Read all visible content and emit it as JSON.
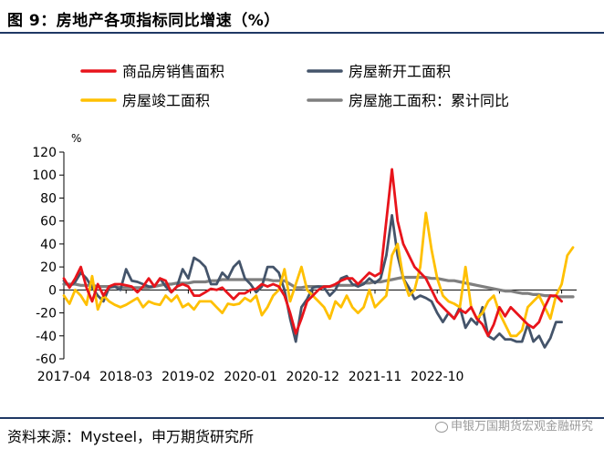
{
  "figure_title": "图 9：房地产各项指标同比增速（%）",
  "source_note": "资料来源：Mysteel，申万期货研究所",
  "watermark_text": "申银万国期货宏观金融研究",
  "colors": {
    "sales_area": "#e8141b",
    "new_starts": "#44546a",
    "completed": "#ffc000",
    "under_construction_cum": "#7f7f7f",
    "rule": "#1f3864"
  },
  "chart_data": {
    "type": "line",
    "unit_label": "%",
    "ylim": [
      -60,
      120
    ],
    "yticks": [
      -60,
      -40,
      -20,
      0,
      20,
      40,
      60,
      80,
      100,
      120
    ],
    "xtick_labels": [
      "2017-04",
      "2018-03",
      "2019-02",
      "2020-01",
      "2020-12",
      "2021-11",
      "2022-10"
    ],
    "x_start": "2017-04",
    "legend": [
      {
        "name": "商品房销售面积",
        "key": "sales_area"
      },
      {
        "name": "房屋新开工面积",
        "key": "new_starts"
      },
      {
        "name": "房屋竣工面积",
        "key": "completed"
      },
      {
        "name": "房屋施工面积：累计同比",
        "key": "under_construction_cum"
      }
    ],
    "series": [
      {
        "key": "sales_area",
        "name": "商品房销售面积",
        "values": [
          10,
          2,
          10,
          20,
          2,
          -10,
          5,
          -5,
          3,
          5,
          5,
          4,
          3,
          -2,
          3,
          10,
          3,
          10,
          8,
          -2,
          3,
          5,
          3,
          -5,
          -5,
          -2,
          1,
          0,
          2,
          -3,
          -8,
          -3,
          -3,
          0,
          1,
          5,
          3,
          5,
          3,
          -5,
          -20,
          -38,
          -25,
          -10,
          -5,
          0,
          3,
          3,
          5,
          8,
          10,
          10,
          5,
          10,
          15,
          12,
          15,
          60,
          105,
          60,
          40,
          30,
          20,
          15,
          10,
          0,
          -10,
          -15,
          -20,
          -25,
          -17,
          -20,
          -15,
          -25,
          -30,
          -40,
          -30,
          -15,
          -23,
          -15,
          -20,
          -25,
          -30,
          -33,
          -28,
          -15,
          -5,
          -5,
          -10
        ]
      },
      {
        "key": "new_starts",
        "name": "房屋新开工面积",
        "values": [
          8,
          3,
          7,
          15,
          10,
          2,
          -5,
          -10,
          2,
          3,
          0,
          18,
          8,
          7,
          5,
          3,
          3,
          10,
          3,
          -2,
          3,
          18,
          10,
          28,
          25,
          20,
          5,
          5,
          15,
          10,
          20,
          25,
          10,
          5,
          -2,
          3,
          20,
          20,
          15,
          0,
          -25,
          -45,
          -15,
          -8,
          2,
          3,
          2,
          -5,
          0,
          10,
          12,
          5,
          3,
          5,
          10,
          6,
          10,
          30,
          65,
          30,
          10,
          2,
          -8,
          -5,
          -7,
          -10,
          -20,
          -28,
          -20,
          -25,
          -15,
          -33,
          -25,
          -30,
          -15,
          -40,
          -43,
          -38,
          -43,
          -43,
          -45,
          -45,
          -30,
          -45,
          -40,
          -50,
          -42,
          -28,
          -28
        ]
      },
      {
        "key": "completed",
        "name": "房屋竣工面积",
        "values": [
          -5,
          -12,
          0,
          -5,
          -13,
          12,
          -17,
          -5,
          -10,
          -13,
          -15,
          -13,
          -10,
          -7,
          -15,
          -10,
          -12,
          -13,
          -5,
          -10,
          -5,
          -15,
          -12,
          -17,
          -10,
          -10,
          -10,
          -15,
          -20,
          -12,
          -13,
          -12,
          -7,
          -10,
          -5,
          -22,
          -15,
          -5,
          0,
          18,
          -10,
          5,
          20,
          0,
          -5,
          -10,
          -15,
          -25,
          -10,
          -15,
          -5,
          -15,
          -20,
          -15,
          0,
          -15,
          -10,
          -5,
          30,
          40,
          10,
          -5,
          0,
          20,
          67,
          35,
          10,
          -5,
          -10,
          -12,
          -15,
          20,
          -15,
          -25,
          -20,
          -10,
          -5,
          -20,
          -30,
          -40,
          -40,
          -35,
          -15,
          -10,
          -5,
          -15,
          -25,
          -5,
          5,
          30,
          37
        ]
      },
      {
        "key": "under_construction_cum",
        "name": "房屋施工面积：累计同比",
        "values": [
          5,
          5,
          5,
          4,
          4,
          4,
          3,
          3,
          3,
          3,
          2,
          2,
          2,
          2,
          2,
          2,
          3,
          4,
          5,
          5,
          6,
          6,
          6,
          7,
          7,
          7,
          8,
          8,
          9,
          9,
          9,
          9,
          9,
          9,
          9,
          9,
          9,
          8,
          8,
          8,
          5,
          2,
          2,
          3,
          3,
          3,
          3,
          3,
          4,
          4,
          4,
          4,
          5,
          6,
          6,
          7,
          7,
          8,
          9,
          10,
          11,
          11,
          11,
          11,
          11,
          10,
          10,
          9,
          8,
          8,
          7,
          6,
          5,
          4,
          3,
          2,
          1,
          0,
          -1,
          -1,
          -2,
          -3,
          -3,
          -4,
          -4,
          -5,
          -5,
          -6,
          -6,
          -6,
          -6
        ]
      }
    ]
  }
}
